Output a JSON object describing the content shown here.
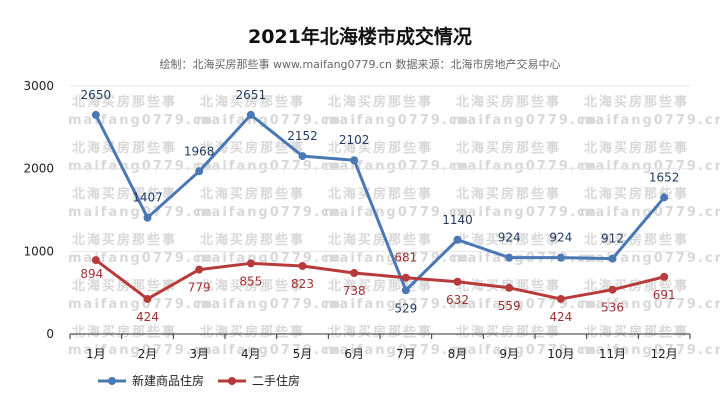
{
  "header": {
    "title": "2021年北海楼市成交情况",
    "subtitle": "绘制：北海买房那些事 www.maifang0779.cn  数据来源：北海市房地产交易中心"
  },
  "watermark": {
    "line1": "北海买房那些事",
    "line2": "maifang0779.cn"
  },
  "colors": {
    "series1": "#4a78b5",
    "series2": "#b73b3b",
    "grid": "#e6e6e6",
    "axis": "#333333"
  },
  "chart_data": {
    "type": "line",
    "title": "2021年北海楼市成交情况",
    "xlabel": "",
    "ylabel": "",
    "categories": [
      "1月",
      "2月",
      "3月",
      "4月",
      "5月",
      "6月",
      "7月",
      "8月",
      "9月",
      "10月",
      "11月",
      "12月"
    ],
    "ylim": [
      0,
      3000
    ],
    "yticks": [
      0,
      1000,
      2000,
      3000
    ],
    "grid": true,
    "legend": "bottom-left",
    "series": [
      {
        "name": "新建商品住房",
        "values": [
          2650,
          1407,
          1968,
          2651,
          2152,
          2102,
          529,
          1140,
          924,
          924,
          912,
          1652
        ]
      },
      {
        "name": "二手住房",
        "values": [
          894,
          424,
          779,
          855,
          823,
          738,
          681,
          632,
          559,
          424,
          536,
          691
        ]
      }
    ]
  }
}
